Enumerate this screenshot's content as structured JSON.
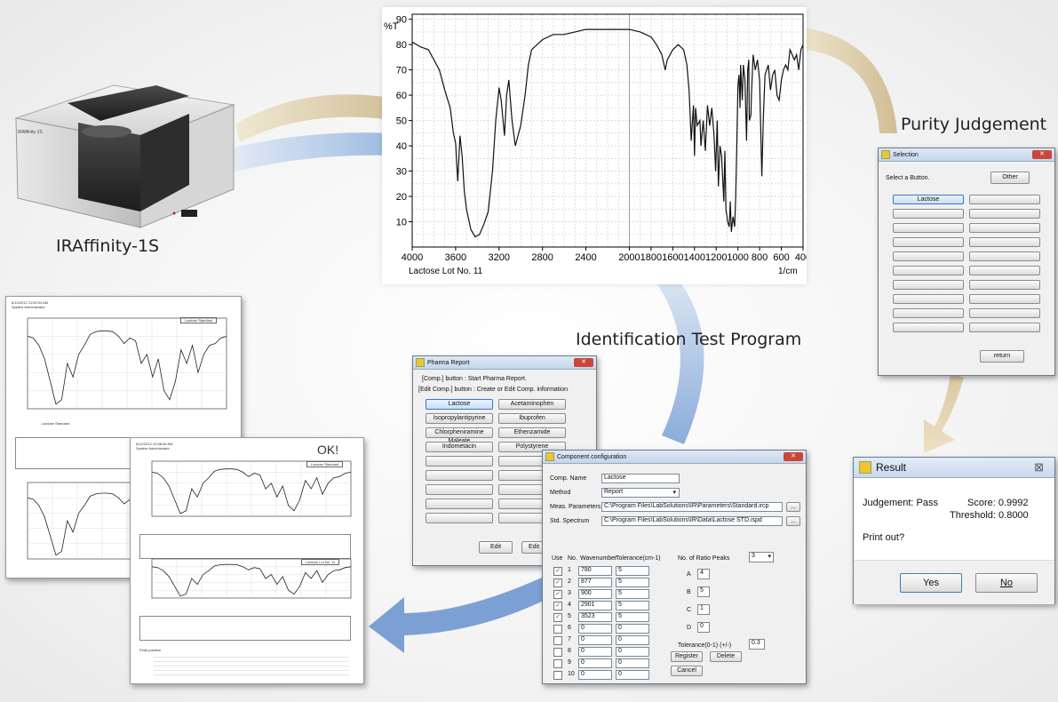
{
  "spectrum": {
    "y_label": "%T",
    "y_ticks": [
      "90",
      "80",
      "70",
      "60",
      "50",
      "40",
      "30",
      "20",
      "10"
    ],
    "x_ticks": [
      "4000",
      "3600",
      "3200",
      "2800",
      "2400",
      "2000",
      "1800",
      "1600",
      "1400",
      "1200",
      "1000",
      "800",
      "600",
      "400"
    ],
    "x_unit": "1/cm",
    "sample_label": "Lactose Lot No. 11"
  },
  "instrument": {
    "name": "IRAffinity-1S",
    "badge": "IRAffinity-1S"
  },
  "labels": {
    "purity": "Purity Judgement",
    "identification": "Identification Test Program"
  },
  "selection_dialog": {
    "title": "Selection",
    "prompt": "Select a Button.",
    "other": "Other",
    "first": "Lactose",
    "return": "return"
  },
  "result_dialog": {
    "title": "Result",
    "close": "⊠",
    "judgement": "Judgement: Pass",
    "score": "Score: 0.9992",
    "threshold": "Threshold: 0.8000",
    "print": "Print out?",
    "yes": "Yes",
    "no": "No"
  },
  "pharma_dialog": {
    "title": "Pharma Report",
    "line1": "[Comp.] button : Start Pharma Report.",
    "line2": "[Edit Comp.] button : Create or Edit Comp. information",
    "buttons": [
      "Lactose",
      "Acetaminophen",
      "Isopropylantipyrine",
      "Ibuprofen",
      "Chlorpheniramine Maleate",
      "Ethenzamide",
      "Indometacin",
      "Polystyrene"
    ],
    "edit": "Edit",
    "edit2": "Edit"
  },
  "component_dialog": {
    "title": "Component configuration",
    "comp_name_label": "Comp. Name",
    "comp_name": "Lactose",
    "method_label": "Method",
    "method": "Report",
    "meas_label": "Meas. Parameters",
    "meas_path": "C:\\Program Files\\LabSolutions\\IR\\Parameters\\Standard.ircp",
    "std_label": "Std. Spectrum",
    "std_path": "C:\\Program Files\\LabSolutions\\IR\\Data\\Lactose STD.ispd",
    "browse": "...",
    "col_use": "Use",
    "col_no": "No.",
    "col_wn": "Wavenumber",
    "col_tol": "Tolerance(cm-1)",
    "rows": [
      {
        "no": "1",
        "wn": "780",
        "tol": "5",
        "checked": true
      },
      {
        "no": "2",
        "wn": "877",
        "tol": "5",
        "checked": true
      },
      {
        "no": "3",
        "wn": "900",
        "tol": "5",
        "checked": true
      },
      {
        "no": "4",
        "wn": "2901",
        "tol": "5",
        "checked": true
      },
      {
        "no": "5",
        "wn": "3523",
        "tol": "5",
        "checked": true
      },
      {
        "no": "6",
        "wn": "0",
        "tol": "0",
        "checked": false
      },
      {
        "no": "7",
        "wn": "0",
        "tol": "0",
        "checked": false
      },
      {
        "no": "8",
        "wn": "0",
        "tol": "0",
        "checked": false
      },
      {
        "no": "9",
        "wn": "0",
        "tol": "0",
        "checked": false
      },
      {
        "no": "10",
        "wn": "0",
        "tol": "0",
        "checked": false
      }
    ],
    "ratio_label": "No. of Ratio Peaks",
    "ratio_value": "3",
    "A": "4",
    "B": "5",
    "C": "1",
    "D": "0",
    "tol_label": "Tolerance(0-1)  (+/-)",
    "tol_value": "0.3",
    "register": "Register",
    "delete": "Delete",
    "cancel": "Cancel"
  },
  "report1": {
    "date": "6/12/2012 11:09:04 AM",
    "user": "System Administrator",
    "legend": "Lactose Standard",
    "caption": "Lactose Standard"
  },
  "report2": {
    "date": "6/12/2012 10:58:46 AM",
    "user": "System Administrator",
    "ok": "OK!",
    "legend1": "Lactose Standard",
    "legend2": "Lactose Lot No. 11",
    "peak_position": "Peak position"
  }
}
